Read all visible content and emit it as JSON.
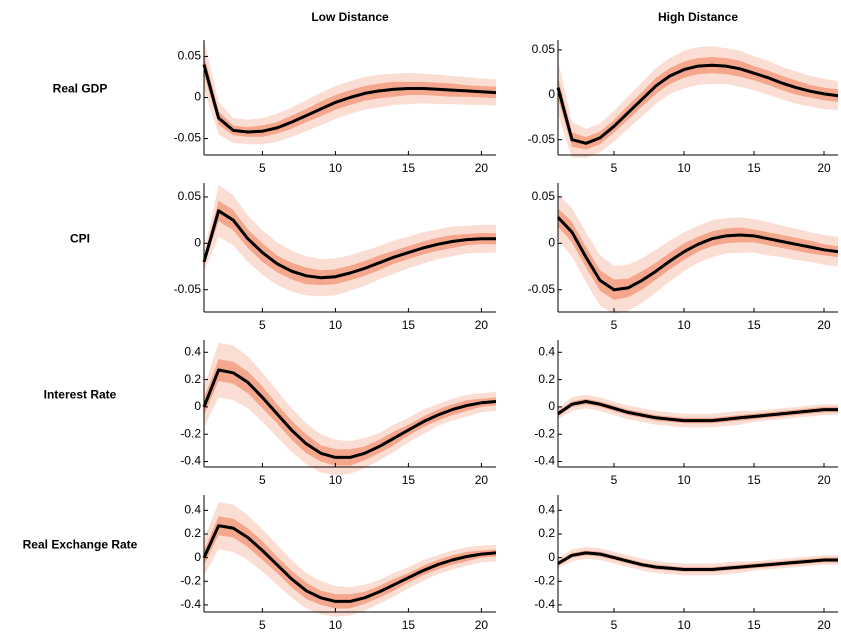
{
  "columns": [
    "Low Distance",
    "High Distance"
  ],
  "rows": [
    "Real GDP",
    "CPI",
    "Interest Rate",
    "Real Exchange Rate"
  ],
  "chart_data": [
    {
      "type": "line",
      "x": [
        1,
        2,
        3,
        4,
        5,
        6,
        7,
        8,
        9,
        10,
        11,
        12,
        13,
        14,
        15,
        16,
        17,
        18,
        19,
        20,
        21
      ],
      "xlim": [
        1,
        21
      ],
      "xticks": [
        5,
        10,
        15,
        20
      ],
      "ylim": [
        -0.07,
        0.07
      ],
      "yticks": [
        -0.05,
        0,
        0.05
      ],
      "series": [
        {
          "color": "#000000",
          "values": [
            0.04,
            -0.025,
            -0.04,
            -0.042,
            -0.041,
            -0.037,
            -0.03,
            -0.022,
            -0.014,
            -0.006,
            0.0,
            0.005,
            0.008,
            0.01,
            0.011,
            0.011,
            0.01,
            0.009,
            0.008,
            0.007,
            0.006
          ]
        }
      ],
      "bands": [
        {
          "color": "#fbded3",
          "errors": [
            0.03,
            0.02,
            0.015,
            0.015,
            0.016,
            0.017,
            0.018,
            0.019,
            0.02,
            0.02,
            0.02,
            0.02,
            0.02,
            0.019,
            0.019,
            0.018,
            0.018,
            0.017,
            0.017,
            0.016,
            0.016
          ]
        },
        {
          "color": "#f5a78e",
          "errors": [
            0.012,
            0.008,
            0.006,
            0.006,
            0.007,
            0.007,
            0.008,
            0.008,
            0.009,
            0.009,
            0.009,
            0.009,
            0.009,
            0.009,
            0.008,
            0.008,
            0.008,
            0.008,
            0.007,
            0.007,
            0.007
          ]
        }
      ]
    },
    {
      "type": "line",
      "x": [
        1,
        2,
        3,
        4,
        5,
        6,
        7,
        8,
        9,
        10,
        11,
        12,
        13,
        14,
        15,
        16,
        17,
        18,
        19,
        20,
        21
      ],
      "xlim": [
        1,
        21
      ],
      "xticks": [
        5,
        10,
        15,
        20
      ],
      "ylim": [
        -0.067,
        0.061
      ],
      "yticks": [
        -0.05,
        0,
        0.05
      ],
      "series": [
        {
          "color": "#000000",
          "values": [
            0.008,
            -0.05,
            -0.054,
            -0.048,
            -0.035,
            -0.02,
            -0.005,
            0.01,
            0.021,
            0.028,
            0.032,
            0.033,
            0.032,
            0.029,
            0.024,
            0.019,
            0.013,
            0.008,
            0.004,
            0.001,
            -0.001
          ]
        }
      ],
      "bands": [
        {
          "color": "#fbded3",
          "errors": [
            0.03,
            0.02,
            0.016,
            0.016,
            0.017,
            0.018,
            0.019,
            0.02,
            0.02,
            0.021,
            0.021,
            0.021,
            0.02,
            0.02,
            0.019,
            0.019,
            0.018,
            0.018,
            0.017,
            0.017,
            0.016
          ]
        },
        {
          "color": "#f5a78e",
          "errors": [
            0.012,
            0.008,
            0.007,
            0.007,
            0.007,
            0.008,
            0.008,
            0.009,
            0.009,
            0.009,
            0.009,
            0.009,
            0.009,
            0.009,
            0.008,
            0.008,
            0.008,
            0.008,
            0.007,
            0.007,
            0.007
          ]
        }
      ]
    },
    {
      "type": "line",
      "x": [
        1,
        2,
        3,
        4,
        5,
        6,
        7,
        8,
        9,
        10,
        11,
        12,
        13,
        14,
        15,
        16,
        17,
        18,
        19,
        20,
        21
      ],
      "xlim": [
        1,
        21
      ],
      "xticks": [
        5,
        10,
        15,
        20
      ],
      "ylim": [
        -0.074,
        0.065
      ],
      "yticks": [
        -0.05,
        0,
        0.05
      ],
      "series": [
        {
          "color": "#000000",
          "values": [
            -0.02,
            0.035,
            0.025,
            0.005,
            -0.01,
            -0.022,
            -0.03,
            -0.035,
            -0.037,
            -0.036,
            -0.032,
            -0.027,
            -0.021,
            -0.015,
            -0.01,
            -0.005,
            -0.001,
            0.002,
            0.004,
            0.005,
            0.005
          ]
        }
      ],
      "bands": [
        {
          "color": "#fbded3",
          "errors": [
            0.01,
            0.028,
            0.027,
            0.025,
            0.024,
            0.023,
            0.022,
            0.021,
            0.02,
            0.02,
            0.019,
            0.019,
            0.018,
            0.018,
            0.017,
            0.017,
            0.016,
            0.016,
            0.015,
            0.015,
            0.015
          ]
        },
        {
          "color": "#f5a78e",
          "errors": [
            0.004,
            0.011,
            0.011,
            0.01,
            0.01,
            0.009,
            0.009,
            0.009,
            0.008,
            0.008,
            0.008,
            0.008,
            0.008,
            0.007,
            0.007,
            0.007,
            0.007,
            0.007,
            0.006,
            0.006,
            0.006
          ]
        }
      ]
    },
    {
      "type": "line",
      "x": [
        1,
        2,
        3,
        4,
        5,
        6,
        7,
        8,
        9,
        10,
        11,
        12,
        13,
        14,
        15,
        16,
        17,
        18,
        19,
        20,
        21
      ],
      "xlim": [
        1,
        21
      ],
      "xticks": [
        5,
        10,
        15,
        20
      ],
      "ylim": [
        -0.074,
        0.065
      ],
      "yticks": [
        -0.05,
        0,
        0.05
      ],
      "series": [
        {
          "color": "#000000",
          "values": [
            0.028,
            0.012,
            -0.015,
            -0.04,
            -0.05,
            -0.048,
            -0.04,
            -0.03,
            -0.019,
            -0.009,
            -0.001,
            0.005,
            0.008,
            0.009,
            0.008,
            0.005,
            0.002,
            -0.001,
            -0.004,
            -0.007,
            -0.009
          ]
        }
      ],
      "bands": [
        {
          "color": "#fbded3",
          "errors": [
            0.025,
            0.026,
            0.027,
            0.027,
            0.026,
            0.025,
            0.024,
            0.023,
            0.022,
            0.021,
            0.02,
            0.02,
            0.019,
            0.019,
            0.018,
            0.018,
            0.017,
            0.017,
            0.016,
            0.016,
            0.016
          ]
        },
        {
          "color": "#f5a78e",
          "errors": [
            0.01,
            0.011,
            0.011,
            0.011,
            0.011,
            0.01,
            0.01,
            0.009,
            0.009,
            0.009,
            0.008,
            0.008,
            0.008,
            0.008,
            0.007,
            0.007,
            0.007,
            0.007,
            0.007,
            0.006,
            0.006
          ]
        }
      ]
    },
    {
      "type": "line",
      "x": [
        1,
        2,
        3,
        4,
        5,
        6,
        7,
        8,
        9,
        10,
        11,
        12,
        13,
        14,
        15,
        16,
        17,
        18,
        19,
        20,
        21
      ],
      "xlim": [
        1,
        21
      ],
      "xticks": [
        5,
        10,
        15,
        20
      ],
      "ylim": [
        -0.44,
        0.49
      ],
      "yticks": [
        -0.4,
        -0.2,
        0,
        0.2,
        0.4
      ],
      "series": [
        {
          "color": "#000000",
          "values": [
            0.0,
            0.27,
            0.25,
            0.18,
            0.07,
            -0.05,
            -0.17,
            -0.27,
            -0.34,
            -0.37,
            -0.37,
            -0.34,
            -0.29,
            -0.23,
            -0.17,
            -0.11,
            -0.06,
            -0.02,
            0.01,
            0.03,
            0.04
          ]
        }
      ],
      "bands": [
        {
          "color": "#fbded3",
          "errors": [
            0.15,
            0.2,
            0.2,
            0.19,
            0.18,
            0.17,
            0.16,
            0.15,
            0.14,
            0.13,
            0.12,
            0.11,
            0.1,
            0.1,
            0.09,
            0.09,
            0.08,
            0.08,
            0.08,
            0.07,
            0.07
          ]
        },
        {
          "color": "#f5a78e",
          "errors": [
            0.06,
            0.08,
            0.08,
            0.08,
            0.08,
            0.07,
            0.07,
            0.07,
            0.06,
            0.06,
            0.06,
            0.05,
            0.05,
            0.05,
            0.04,
            0.04,
            0.04,
            0.04,
            0.04,
            0.03,
            0.03
          ]
        }
      ]
    },
    {
      "type": "line",
      "x": [
        1,
        2,
        3,
        4,
        5,
        6,
        7,
        8,
        9,
        10,
        11,
        12,
        13,
        14,
        15,
        16,
        17,
        18,
        19,
        20,
        21
      ],
      "xlim": [
        1,
        21
      ],
      "xticks": [
        5,
        10,
        15,
        20
      ],
      "ylim": [
        -0.44,
        0.49
      ],
      "yticks": [
        -0.4,
        -0.2,
        0,
        0.2,
        0.4
      ],
      "series": [
        {
          "color": "#000000",
          "values": [
            -0.05,
            0.02,
            0.04,
            0.02,
            -0.01,
            -0.04,
            -0.06,
            -0.08,
            -0.09,
            -0.1,
            -0.1,
            -0.1,
            -0.09,
            -0.08,
            -0.07,
            -0.06,
            -0.05,
            -0.04,
            -0.03,
            -0.02,
            -0.02
          ]
        }
      ],
      "bands": [
        {
          "color": "#fbded3",
          "errors": [
            0.04,
            0.05,
            0.05,
            0.05,
            0.05,
            0.05,
            0.05,
            0.05,
            0.05,
            0.05,
            0.05,
            0.05,
            0.05,
            0.05,
            0.04,
            0.04,
            0.04,
            0.04,
            0.04,
            0.04,
            0.04
          ]
        },
        {
          "color": "#f5a78e",
          "errors": [
            0.02,
            0.02,
            0.02,
            0.02,
            0.02,
            0.02,
            0.02,
            0.02,
            0.02,
            0.02,
            0.02,
            0.02,
            0.02,
            0.02,
            0.02,
            0.02,
            0.02,
            0.02,
            0.02,
            0.02,
            0.02
          ]
        }
      ]
    },
    {
      "type": "line",
      "x": [
        1,
        2,
        3,
        4,
        5,
        6,
        7,
        8,
        9,
        10,
        11,
        12,
        13,
        14,
        15,
        16,
        17,
        18,
        19,
        20,
        21
      ],
      "xlim": [
        1,
        21
      ],
      "xticks": [
        5,
        10,
        15,
        20
      ],
      "ylim": [
        -0.46,
        0.53
      ],
      "yticks": [
        -0.4,
        -0.2,
        0,
        0.2,
        0.4
      ],
      "series": [
        {
          "color": "#000000",
          "values": [
            0.0,
            0.27,
            0.25,
            0.17,
            0.06,
            -0.06,
            -0.18,
            -0.28,
            -0.34,
            -0.37,
            -0.37,
            -0.34,
            -0.29,
            -0.23,
            -0.17,
            -0.11,
            -0.06,
            -0.02,
            0.01,
            0.03,
            0.04
          ]
        }
      ],
      "bands": [
        {
          "color": "#fbded3",
          "errors": [
            0.15,
            0.2,
            0.2,
            0.19,
            0.18,
            0.17,
            0.16,
            0.15,
            0.14,
            0.13,
            0.12,
            0.11,
            0.1,
            0.1,
            0.09,
            0.09,
            0.08,
            0.08,
            0.08,
            0.07,
            0.07
          ]
        },
        {
          "color": "#f5a78e",
          "errors": [
            0.06,
            0.08,
            0.08,
            0.08,
            0.08,
            0.07,
            0.07,
            0.07,
            0.06,
            0.06,
            0.06,
            0.05,
            0.05,
            0.05,
            0.04,
            0.04,
            0.04,
            0.04,
            0.04,
            0.03,
            0.03
          ]
        }
      ]
    },
    {
      "type": "line",
      "x": [
        1,
        2,
        3,
        4,
        5,
        6,
        7,
        8,
        9,
        10,
        11,
        12,
        13,
        14,
        15,
        16,
        17,
        18,
        19,
        20,
        21
      ],
      "xlim": [
        1,
        21
      ],
      "xticks": [
        5,
        10,
        15,
        20
      ],
      "ylim": [
        -0.46,
        0.53
      ],
      "yticks": [
        -0.4,
        -0.2,
        0,
        0.2,
        0.4
      ],
      "series": [
        {
          "color": "#000000",
          "values": [
            -0.05,
            0.02,
            0.04,
            0.03,
            0.0,
            -0.03,
            -0.06,
            -0.08,
            -0.09,
            -0.1,
            -0.1,
            -0.1,
            -0.09,
            -0.08,
            -0.07,
            -0.06,
            -0.05,
            -0.04,
            -0.03,
            -0.02,
            -0.02
          ]
        }
      ],
      "bands": [
        {
          "color": "#fbded3",
          "errors": [
            0.04,
            0.05,
            0.05,
            0.05,
            0.05,
            0.05,
            0.05,
            0.05,
            0.05,
            0.05,
            0.05,
            0.05,
            0.05,
            0.05,
            0.04,
            0.04,
            0.04,
            0.04,
            0.04,
            0.04,
            0.04
          ]
        },
        {
          "color": "#f5a78e",
          "errors": [
            0.02,
            0.02,
            0.02,
            0.02,
            0.02,
            0.02,
            0.02,
            0.02,
            0.02,
            0.02,
            0.02,
            0.02,
            0.02,
            0.02,
            0.02,
            0.02,
            0.02,
            0.02,
            0.02,
            0.02,
            0.02
          ]
        }
      ]
    }
  ]
}
